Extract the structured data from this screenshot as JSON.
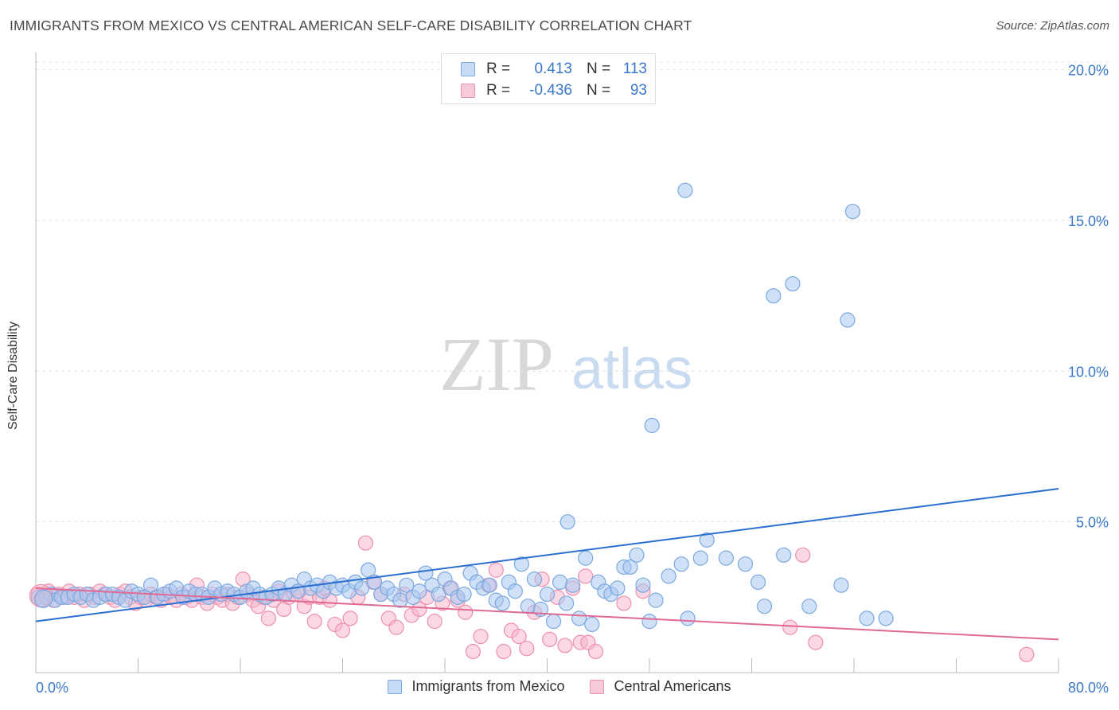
{
  "header": {
    "title": "IMMIGRANTS FROM MEXICO VS CENTRAL AMERICAN SELF-CARE DISABILITY CORRELATION CHART",
    "source": "Source: ZipAtlas.com"
  },
  "watermark": {
    "zip": "ZIP",
    "atlas": "atlas"
  },
  "stats_legend": {
    "rows": [
      {
        "r_label": "R =",
        "r_value": "0.413",
        "n_label": "N =",
        "n_value": "113",
        "color": "#a9c8f0"
      },
      {
        "r_label": "R =",
        "r_value": "-0.436",
        "n_label": "N =",
        "n_value": "93",
        "color": "#f7b8cc"
      }
    ]
  },
  "colors": {
    "blue_fill": "#a9c8f0",
    "blue_stroke": "#7aa8e0",
    "blue_line": "#2b6fd1",
    "pink_fill": "#f7b8cc",
    "pink_stroke": "#ee8fae",
    "pink_line": "#e06a93",
    "axis_text": "#3a78c8",
    "grid": "#dddddd"
  },
  "chart_data": {
    "type": "scatter",
    "title": "IMMIGRANTS FROM MEXICO VS CENTRAL AMERICAN SELF-CARE DISABILITY CORRELATION CHART",
    "xlabel": "",
    "ylabel": "Self-Care Disability",
    "xlim": [
      0,
      80
    ],
    "ylim": [
      0,
      20.6
    ],
    "x_tick_labels": [
      "0.0%",
      "80.0%"
    ],
    "y_ticks": [
      5,
      10,
      15,
      20
    ],
    "y_tick_labels": [
      "5.0%",
      "10.0%",
      "15.0%",
      "20.0%"
    ],
    "grid": "horizontal dashed",
    "legend": "bottom-center",
    "series": [
      {
        "name": "Immigrants from Mexico",
        "color": "#a9c8f0",
        "trend": {
          "x": [
            0,
            80
          ],
          "y": [
            1.7,
            6.1
          ]
        },
        "points": [
          [
            0.2,
            2.5
          ],
          [
            0.5,
            2.4
          ],
          [
            0.8,
            2.5
          ],
          [
            1.2,
            2.6
          ],
          [
            1.5,
            2.4
          ],
          [
            2.0,
            2.5
          ],
          [
            2.5,
            2.5
          ],
          [
            3.0,
            2.6
          ],
          [
            3.5,
            2.5
          ],
          [
            4.0,
            2.6
          ],
          [
            4.5,
            2.4
          ],
          [
            5.0,
            2.5
          ],
          [
            5.5,
            2.6
          ],
          [
            6.0,
            2.6
          ],
          [
            6.5,
            2.5
          ],
          [
            7.0,
            2.4
          ],
          [
            7.5,
            2.7
          ],
          [
            8.0,
            2.6
          ],
          [
            8.5,
            2.5
          ],
          [
            9.0,
            2.9
          ],
          [
            9.5,
            2.5
          ],
          [
            10.0,
            2.6
          ],
          [
            10.5,
            2.7
          ],
          [
            11.0,
            2.8
          ],
          [
            11.5,
            2.5
          ],
          [
            12.0,
            2.7
          ],
          [
            12.5,
            2.6
          ],
          [
            13.0,
            2.6
          ],
          [
            13.5,
            2.5
          ],
          [
            14.0,
            2.8
          ],
          [
            14.5,
            2.6
          ],
          [
            15.0,
            2.7
          ],
          [
            15.5,
            2.6
          ],
          [
            16.0,
            2.5
          ],
          [
            16.5,
            2.7
          ],
          [
            17.0,
            2.8
          ],
          [
            17.5,
            2.6
          ],
          [
            18.0,
            2.5
          ],
          [
            18.5,
            2.6
          ],
          [
            19.0,
            2.8
          ],
          [
            19.5,
            2.6
          ],
          [
            20.0,
            2.9
          ],
          [
            20.5,
            2.7
          ],
          [
            21.0,
            3.1
          ],
          [
            21.5,
            2.8
          ],
          [
            22.0,
            2.9
          ],
          [
            22.5,
            2.7
          ],
          [
            23.0,
            3.0
          ],
          [
            23.5,
            2.8
          ],
          [
            24.0,
            2.9
          ],
          [
            24.5,
            2.7
          ],
          [
            25.0,
            3.0
          ],
          [
            25.5,
            2.8
          ],
          [
            26.0,
            3.4
          ],
          [
            26.5,
            3.0
          ],
          [
            27.0,
            2.6
          ],
          [
            27.5,
            2.8
          ],
          [
            28.0,
            2.6
          ],
          [
            28.5,
            2.4
          ],
          [
            29.0,
            2.9
          ],
          [
            29.5,
            2.5
          ],
          [
            30.0,
            2.7
          ],
          [
            30.5,
            3.3
          ],
          [
            31.0,
            2.9
          ],
          [
            31.5,
            2.6
          ],
          [
            32.0,
            3.1
          ],
          [
            32.5,
            2.8
          ],
          [
            33.0,
            2.5
          ],
          [
            33.5,
            2.6
          ],
          [
            34.0,
            3.3
          ],
          [
            34.5,
            3.0
          ],
          [
            35.0,
            2.8
          ],
          [
            35.5,
            2.9
          ],
          [
            36.0,
            2.4
          ],
          [
            36.5,
            2.3
          ],
          [
            37.0,
            3.0
          ],
          [
            37.5,
            2.7
          ],
          [
            38.0,
            3.6
          ],
          [
            38.5,
            2.2
          ],
          [
            39.0,
            3.1
          ],
          [
            39.5,
            2.1
          ],
          [
            40.0,
            2.6
          ],
          [
            40.5,
            1.7
          ],
          [
            41.0,
            3.0
          ],
          [
            41.5,
            2.3
          ],
          [
            42.0,
            2.9
          ],
          [
            42.5,
            1.8
          ],
          [
            43.0,
            3.8
          ],
          [
            43.5,
            1.6
          ],
          [
            44.0,
            3.0
          ],
          [
            44.5,
            2.7
          ],
          [
            45.0,
            2.6
          ],
          [
            45.5,
            2.8
          ],
          [
            46.0,
            3.5
          ],
          [
            46.5,
            3.5
          ],
          [
            47.0,
            3.9
          ],
          [
            47.5,
            2.9
          ],
          [
            48.0,
            1.7
          ],
          [
            48.5,
            2.4
          ],
          [
            49.5,
            3.2
          ],
          [
            50.5,
            3.6
          ],
          [
            51.0,
            1.8
          ],
          [
            52.0,
            3.8
          ],
          [
            52.5,
            4.4
          ],
          [
            54.0,
            3.8
          ],
          [
            55.5,
            3.6
          ],
          [
            56.5,
            3.0
          ],
          [
            57.0,
            2.2
          ],
          [
            58.5,
            3.9
          ],
          [
            60.5,
            2.2
          ],
          [
            63.0,
            2.9
          ],
          [
            65.0,
            1.8
          ],
          [
            66.5,
            1.8
          ]
        ],
        "outliers": [
          [
            50.8,
            16.0
          ],
          [
            63.9,
            15.3
          ],
          [
            57.7,
            12.5
          ],
          [
            59.2,
            12.9
          ],
          [
            63.5,
            11.7
          ],
          [
            48.2,
            8.2
          ],
          [
            41.6,
            5.0
          ]
        ]
      },
      {
        "name": "Central Americans",
        "color": "#f7b8cc",
        "trend": {
          "x": [
            0,
            80
          ],
          "y": [
            2.8,
            1.1
          ]
        },
        "points": [
          [
            0.2,
            2.6
          ],
          [
            0.6,
            2.5
          ],
          [
            1.0,
            2.7
          ],
          [
            1.4,
            2.4
          ],
          [
            1.8,
            2.6
          ],
          [
            2.2,
            2.5
          ],
          [
            2.6,
            2.7
          ],
          [
            3.0,
            2.5
          ],
          [
            3.4,
            2.6
          ],
          [
            3.8,
            2.4
          ],
          [
            4.2,
            2.6
          ],
          [
            4.6,
            2.5
          ],
          [
            5.0,
            2.7
          ],
          [
            5.4,
            2.6
          ],
          [
            5.8,
            2.5
          ],
          [
            6.2,
            2.4
          ],
          [
            6.6,
            2.6
          ],
          [
            7.0,
            2.7
          ],
          [
            7.4,
            2.5
          ],
          [
            7.8,
            2.3
          ],
          [
            8.2,
            2.5
          ],
          [
            8.6,
            2.4
          ],
          [
            9.0,
            2.6
          ],
          [
            9.4,
            2.5
          ],
          [
            9.8,
            2.4
          ],
          [
            10.2,
            2.6
          ],
          [
            10.6,
            2.5
          ],
          [
            11.0,
            2.4
          ],
          [
            11.4,
            2.6
          ],
          [
            11.8,
            2.5
          ],
          [
            12.2,
            2.4
          ],
          [
            12.6,
            2.9
          ],
          [
            13.0,
            2.5
          ],
          [
            13.4,
            2.3
          ],
          [
            13.8,
            2.6
          ],
          [
            14.2,
            2.5
          ],
          [
            14.6,
            2.4
          ],
          [
            15.0,
            2.6
          ],
          [
            15.4,
            2.3
          ],
          [
            15.8,
            2.5
          ],
          [
            16.2,
            3.1
          ],
          [
            16.6,
            2.6
          ],
          [
            17.0,
            2.4
          ],
          [
            17.4,
            2.2
          ],
          [
            17.8,
            2.5
          ],
          [
            18.2,
            1.8
          ],
          [
            18.6,
            2.4
          ],
          [
            19.0,
            2.7
          ],
          [
            19.4,
            2.1
          ],
          [
            19.8,
            2.5
          ],
          [
            20.2,
            2.6
          ],
          [
            20.6,
            2.7
          ],
          [
            21.0,
            2.2
          ],
          [
            21.4,
            2.5
          ],
          [
            21.8,
            1.7
          ],
          [
            22.2,
            2.5
          ],
          [
            22.6,
            2.8
          ],
          [
            23.0,
            2.4
          ],
          [
            23.4,
            1.6
          ],
          [
            24.0,
            1.4
          ],
          [
            24.6,
            1.8
          ],
          [
            25.2,
            2.5
          ],
          [
            25.8,
            4.3
          ],
          [
            26.4,
            3.0
          ],
          [
            27.0,
            2.6
          ],
          [
            27.6,
            1.8
          ],
          [
            28.2,
            1.5
          ],
          [
            28.8,
            2.6
          ],
          [
            29.4,
            1.9
          ],
          [
            30.0,
            2.1
          ],
          [
            30.6,
            2.5
          ],
          [
            31.2,
            1.7
          ],
          [
            31.8,
            2.3
          ],
          [
            32.4,
            2.8
          ],
          [
            33.0,
            2.4
          ],
          [
            33.6,
            2.0
          ],
          [
            34.2,
            0.7
          ],
          [
            34.8,
            1.2
          ],
          [
            35.4,
            2.9
          ],
          [
            36.0,
            3.4
          ],
          [
            36.6,
            0.7
          ],
          [
            37.2,
            1.4
          ],
          [
            37.8,
            1.2
          ],
          [
            38.4,
            0.8
          ],
          [
            39.0,
            2.0
          ],
          [
            39.6,
            3.1
          ],
          [
            40.2,
            1.1
          ],
          [
            40.8,
            2.5
          ],
          [
            41.4,
            0.9
          ],
          [
            42.0,
            2.8
          ],
          [
            42.6,
            1.0
          ],
          [
            43.2,
            1.0
          ],
          [
            43.8,
            0.7
          ]
        ],
        "outliers": [
          [
            43.0,
            3.2
          ],
          [
            46.0,
            2.3
          ],
          [
            47.5,
            2.7
          ],
          [
            59.0,
            1.5
          ],
          [
            60.0,
            3.9
          ],
          [
            61.0,
            1.0
          ],
          [
            77.5,
            0.6
          ]
        ]
      }
    ]
  },
  "bottom_legend": {
    "items": [
      {
        "label": "Immigrants from Mexico",
        "color": "#a9c8f0"
      },
      {
        "label": "Central Americans",
        "color": "#f7b8cc"
      }
    ]
  }
}
